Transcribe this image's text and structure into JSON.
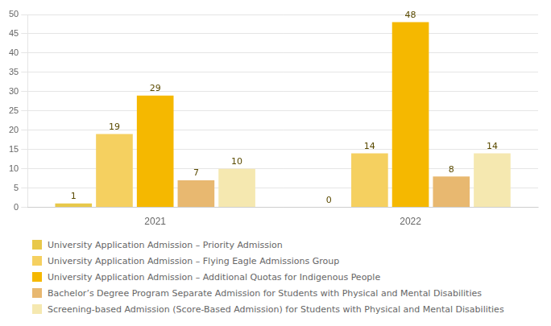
{
  "chart_data": {
    "type": "bar",
    "categories": [
      "2021",
      "2022"
    ],
    "series": [
      {
        "name": "University Application Admission – Priority Admission",
        "values": [
          1,
          0
        ],
        "color": "#E8C84A"
      },
      {
        "name": "University Application Admission – Flying Eagle Admissions Group",
        "values": [
          19,
          14
        ],
        "color": "#F5D060"
      },
      {
        "name": "University Application Admission – Additional Quotas for Indigenous People",
        "values": [
          29,
          48
        ],
        "color": "#F5B800"
      },
      {
        "name": "Bachelor’s Degree Program Separate Admission for Students with Physical and Mental Disabilities",
        "values": [
          7,
          8
        ],
        "color": "#E8B870"
      },
      {
        "name": "Screening-based Admission (Score-Based Admission) for Students with Physical and Mental Disabilities",
        "values": [
          10,
          14
        ],
        "color": "#F5E8B0"
      }
    ],
    "ylim": [
      0,
      50
    ],
    "yticks": [
      0,
      5,
      10,
      15,
      20,
      25,
      30,
      35,
      40,
      45,
      50
    ],
    "grid": true,
    "legend": "bottom",
    "data_labels": true
  }
}
